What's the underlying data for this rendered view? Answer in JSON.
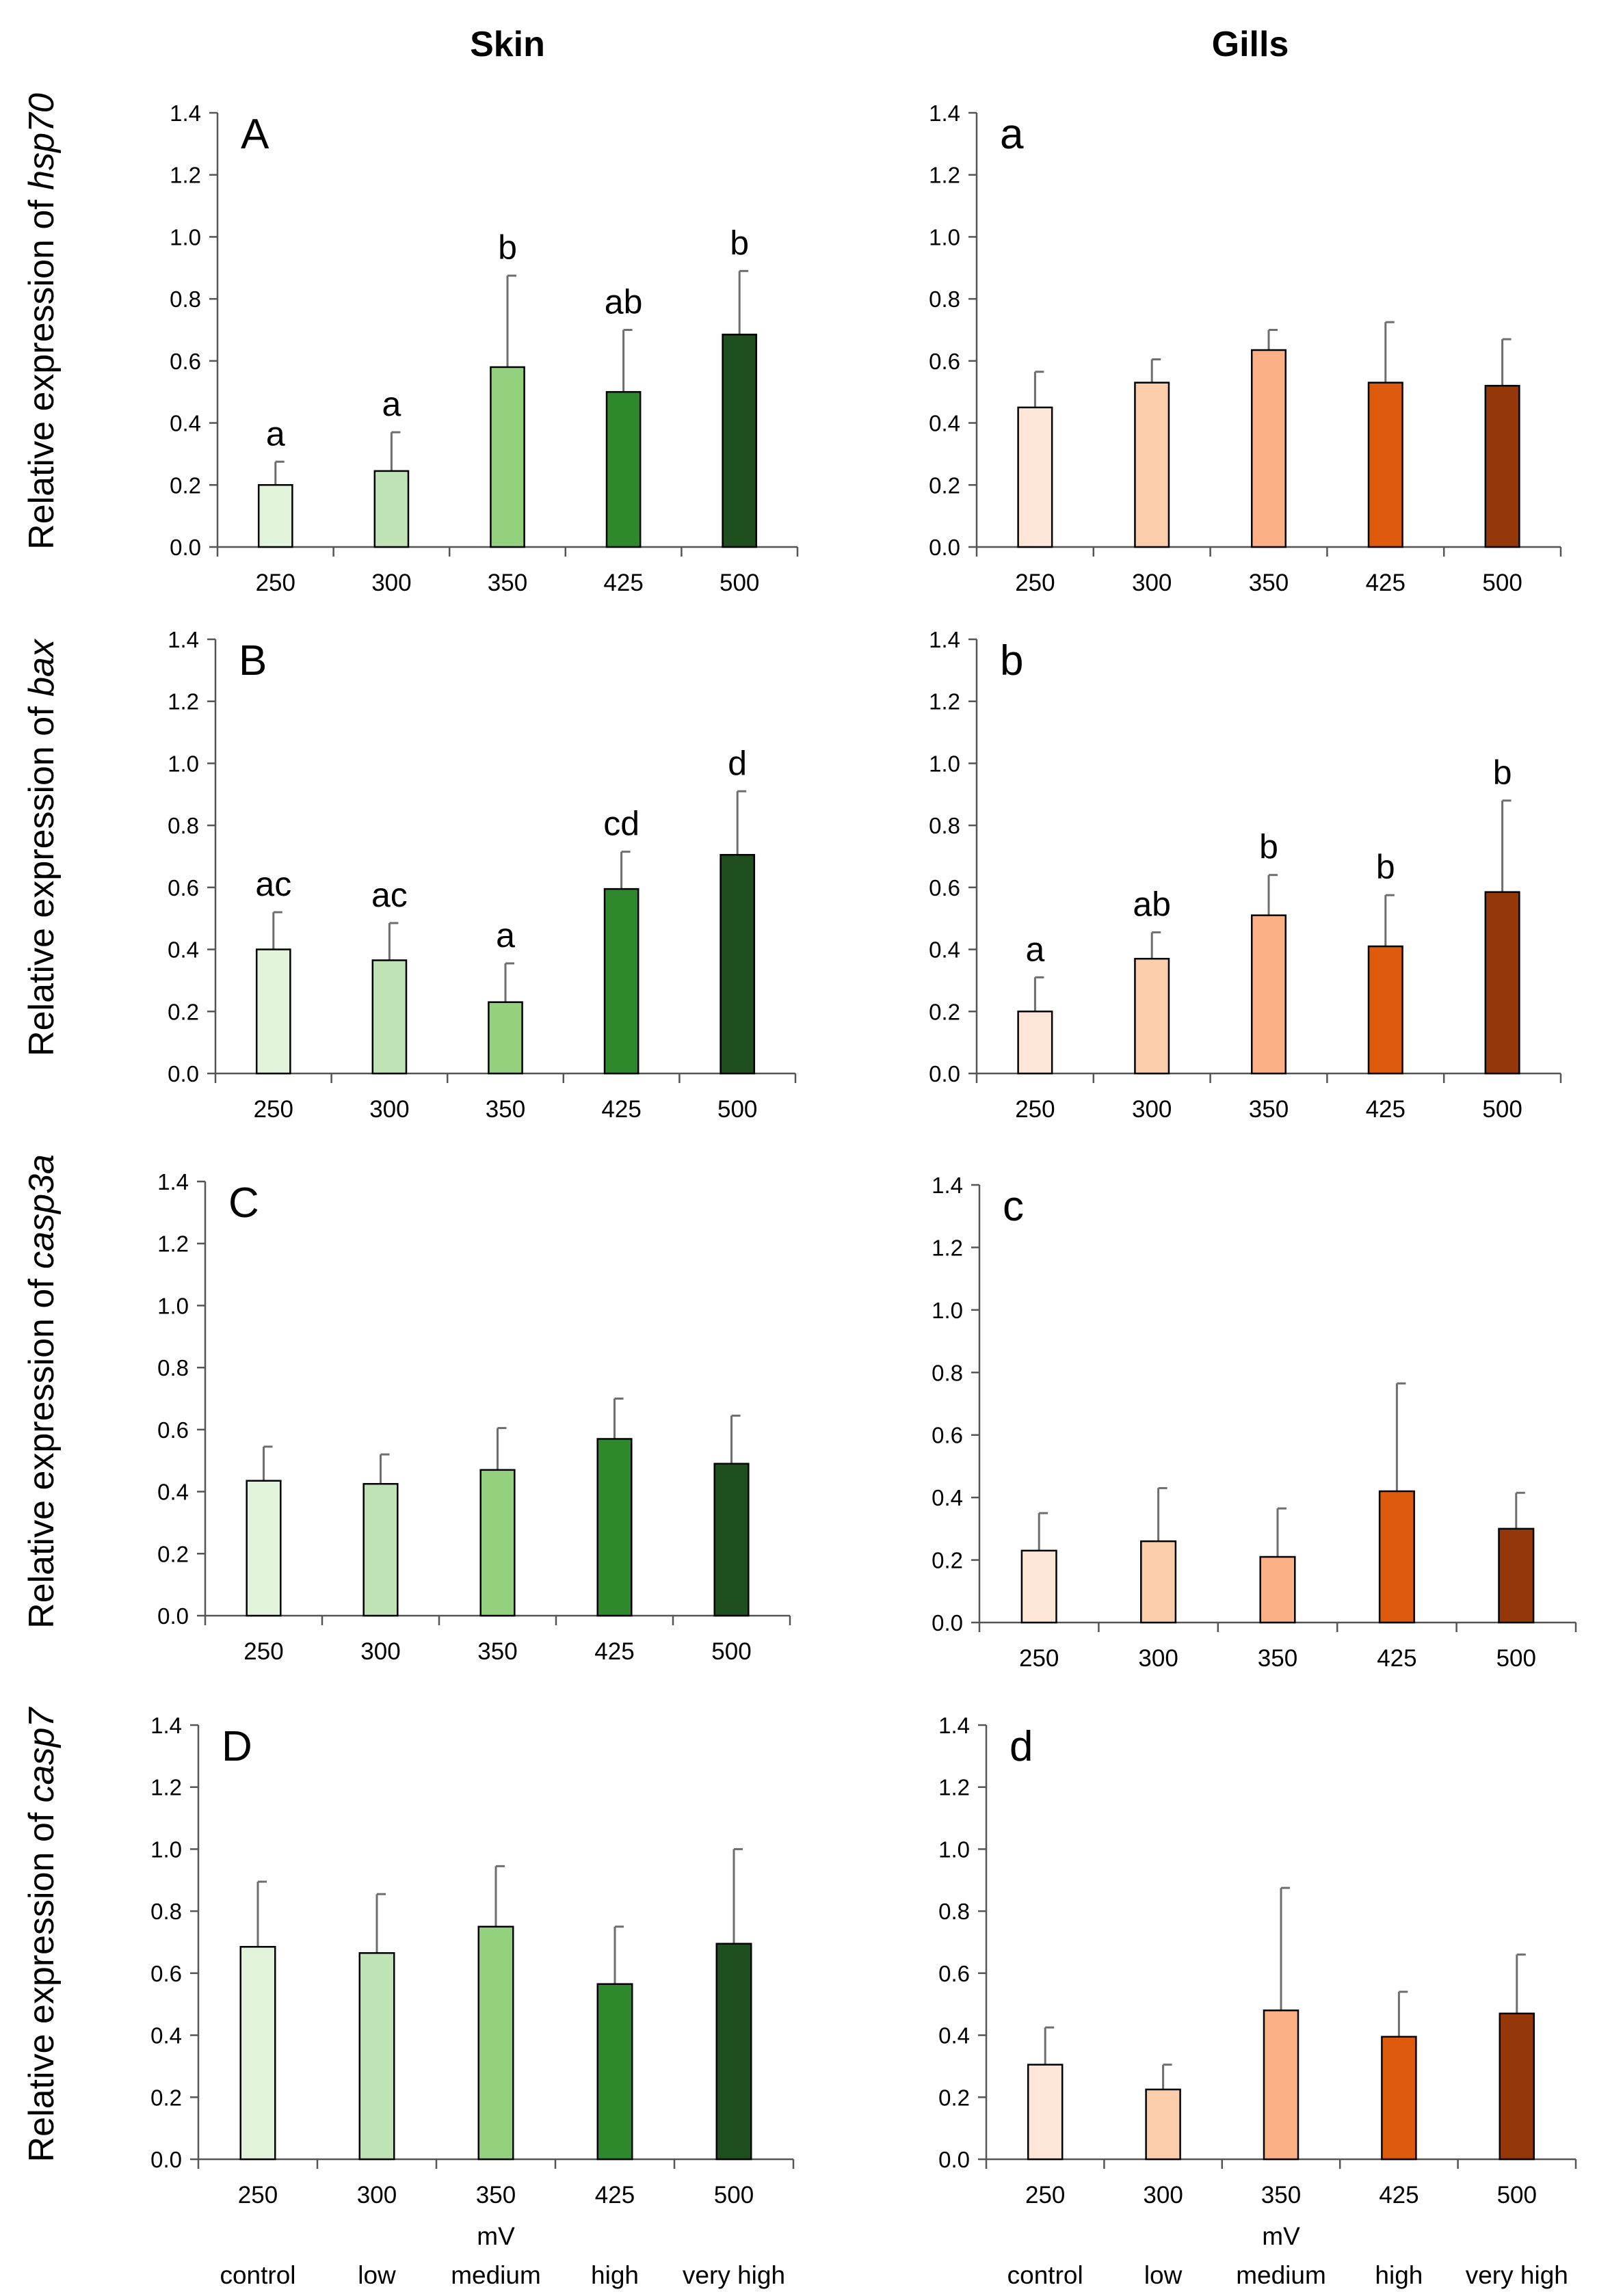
{
  "columns": {
    "skin": "Skin",
    "gills": "Gills"
  },
  "ylabel_prefix": "Relative expression of",
  "genes": [
    "hsp70",
    "bax",
    "casp3a",
    "casp7"
  ],
  "mv_label": "mV",
  "categories_bottom": [
    "control",
    "low",
    "medium",
    "high",
    "very high"
  ],
  "colors": {
    "skin": [
      "#e2f3dc",
      "#bfe3b5",
      "#93d17f",
      "#2e882c",
      "#1e4f1d"
    ],
    "gills": [
      "#fde5d7",
      "#fccdaa",
      "#fbb185",
      "#de5a0d",
      "#943809"
    ]
  },
  "chart_data": [
    {
      "type": "bar",
      "panel": "A",
      "tissue": "Skin",
      "gene": "hsp70",
      "categories": [
        "250",
        "300",
        "350",
        "425",
        "500"
      ],
      "values": [
        0.2,
        0.245,
        0.58,
        0.5,
        0.685
      ],
      "errors": [
        0.075,
        0.125,
        0.295,
        0.2,
        0.205
      ],
      "labels": [
        "a",
        "a",
        "b",
        "ab",
        "b"
      ],
      "ylim": [
        0,
        1.4
      ],
      "yticks": [
        "0.0",
        "0.2",
        "0.4",
        "0.6",
        "0.8",
        "1.0",
        "1.2",
        "1.4"
      ]
    },
    {
      "type": "bar",
      "panel": "a",
      "tissue": "Gills",
      "gene": "hsp70",
      "categories": [
        "250",
        "300",
        "350",
        "425",
        "500"
      ],
      "values": [
        0.45,
        0.53,
        0.635,
        0.53,
        0.52
      ],
      "errors": [
        0.115,
        0.075,
        0.065,
        0.195,
        0.15
      ],
      "labels": [
        "",
        "",
        "",
        "",
        ""
      ],
      "ylim": [
        0,
        1.4
      ],
      "yticks": [
        "0.0",
        "0.2",
        "0.4",
        "0.6",
        "0.8",
        "1.0",
        "1.2",
        "1.4"
      ]
    },
    {
      "type": "bar",
      "panel": "B",
      "tissue": "Skin",
      "gene": "bax",
      "categories": [
        "250",
        "300",
        "350",
        "425",
        "500"
      ],
      "values": [
        0.4,
        0.365,
        0.23,
        0.595,
        0.705
      ],
      "errors": [
        0.12,
        0.12,
        0.125,
        0.12,
        0.205
      ],
      "labels": [
        "ac",
        "ac",
        "a",
        "cd",
        "d"
      ],
      "ylim": [
        0,
        1.4
      ],
      "yticks": [
        "0.0",
        "0.2",
        "0.4",
        "0.6",
        "0.8",
        "1.0",
        "1.2",
        "1.4"
      ]
    },
    {
      "type": "bar",
      "panel": "b",
      "tissue": "Gills",
      "gene": "bax",
      "categories": [
        "250",
        "300",
        "350",
        "425",
        "500"
      ],
      "values": [
        0.2,
        0.37,
        0.51,
        0.41,
        0.585
      ],
      "errors": [
        0.11,
        0.085,
        0.13,
        0.165,
        0.295
      ],
      "labels": [
        "a",
        "ab",
        "b",
        "b",
        "b"
      ],
      "ylim": [
        0,
        1.4
      ],
      "yticks": [
        "0.0",
        "0.2",
        "0.4",
        "0.6",
        "0.8",
        "1.0",
        "1.2",
        "1.4"
      ]
    },
    {
      "type": "bar",
      "panel": "C",
      "tissue": "Skin",
      "gene": "casp3a",
      "categories": [
        "250",
        "300",
        "350",
        "425",
        "500"
      ],
      "values": [
        0.435,
        0.425,
        0.47,
        0.57,
        0.49
      ],
      "errors": [
        0.11,
        0.095,
        0.135,
        0.13,
        0.155
      ],
      "labels": [
        "",
        "",
        "",
        "",
        ""
      ],
      "ylim": [
        0,
        1.4
      ],
      "yticks": [
        "0.0",
        "0.2",
        "0.4",
        "0.6",
        "0.8",
        "1.0",
        "1.2",
        "1.4"
      ]
    },
    {
      "type": "bar",
      "panel": "c",
      "tissue": "Gills",
      "gene": "casp3a",
      "categories": [
        "250",
        "300",
        "350",
        "425",
        "500"
      ],
      "values": [
        0.23,
        0.26,
        0.21,
        0.42,
        0.3
      ],
      "errors": [
        0.12,
        0.17,
        0.155,
        0.345,
        0.115
      ],
      "labels": [
        "",
        "",
        "",
        "",
        ""
      ],
      "ylim": [
        0,
        1.4
      ],
      "yticks": [
        "0.0",
        "0.2",
        "0.4",
        "0.6",
        "0.8",
        "1.0",
        "1.2",
        "1.4"
      ]
    },
    {
      "type": "bar",
      "panel": "D",
      "tissue": "Skin",
      "gene": "casp7",
      "categories": [
        "250",
        "300",
        "350",
        "425",
        "500"
      ],
      "values": [
        0.685,
        0.665,
        0.75,
        0.565,
        0.695
      ],
      "errors": [
        0.21,
        0.19,
        0.195,
        0.185,
        0.305
      ],
      "labels": [
        "",
        "",
        "",
        "",
        ""
      ],
      "ylim": [
        0,
        1.4
      ],
      "yticks": [
        "0.0",
        "0.2",
        "0.4",
        "0.6",
        "0.8",
        "1.0",
        "1.2",
        "1.4"
      ]
    },
    {
      "type": "bar",
      "panel": "d",
      "tissue": "Gills",
      "gene": "casp7",
      "categories": [
        "250",
        "300",
        "350",
        "425",
        "500"
      ],
      "values": [
        0.305,
        0.225,
        0.48,
        0.395,
        0.47
      ],
      "errors": [
        0.12,
        0.08,
        0.395,
        0.145,
        0.19
      ],
      "labels": [
        "",
        "",
        "",
        "",
        ""
      ],
      "ylim": [
        0,
        1.4
      ],
      "yticks": [
        "0.0",
        "0.2",
        "0.4",
        "0.6",
        "0.8",
        "1.0",
        "1.2",
        "1.4"
      ]
    }
  ]
}
